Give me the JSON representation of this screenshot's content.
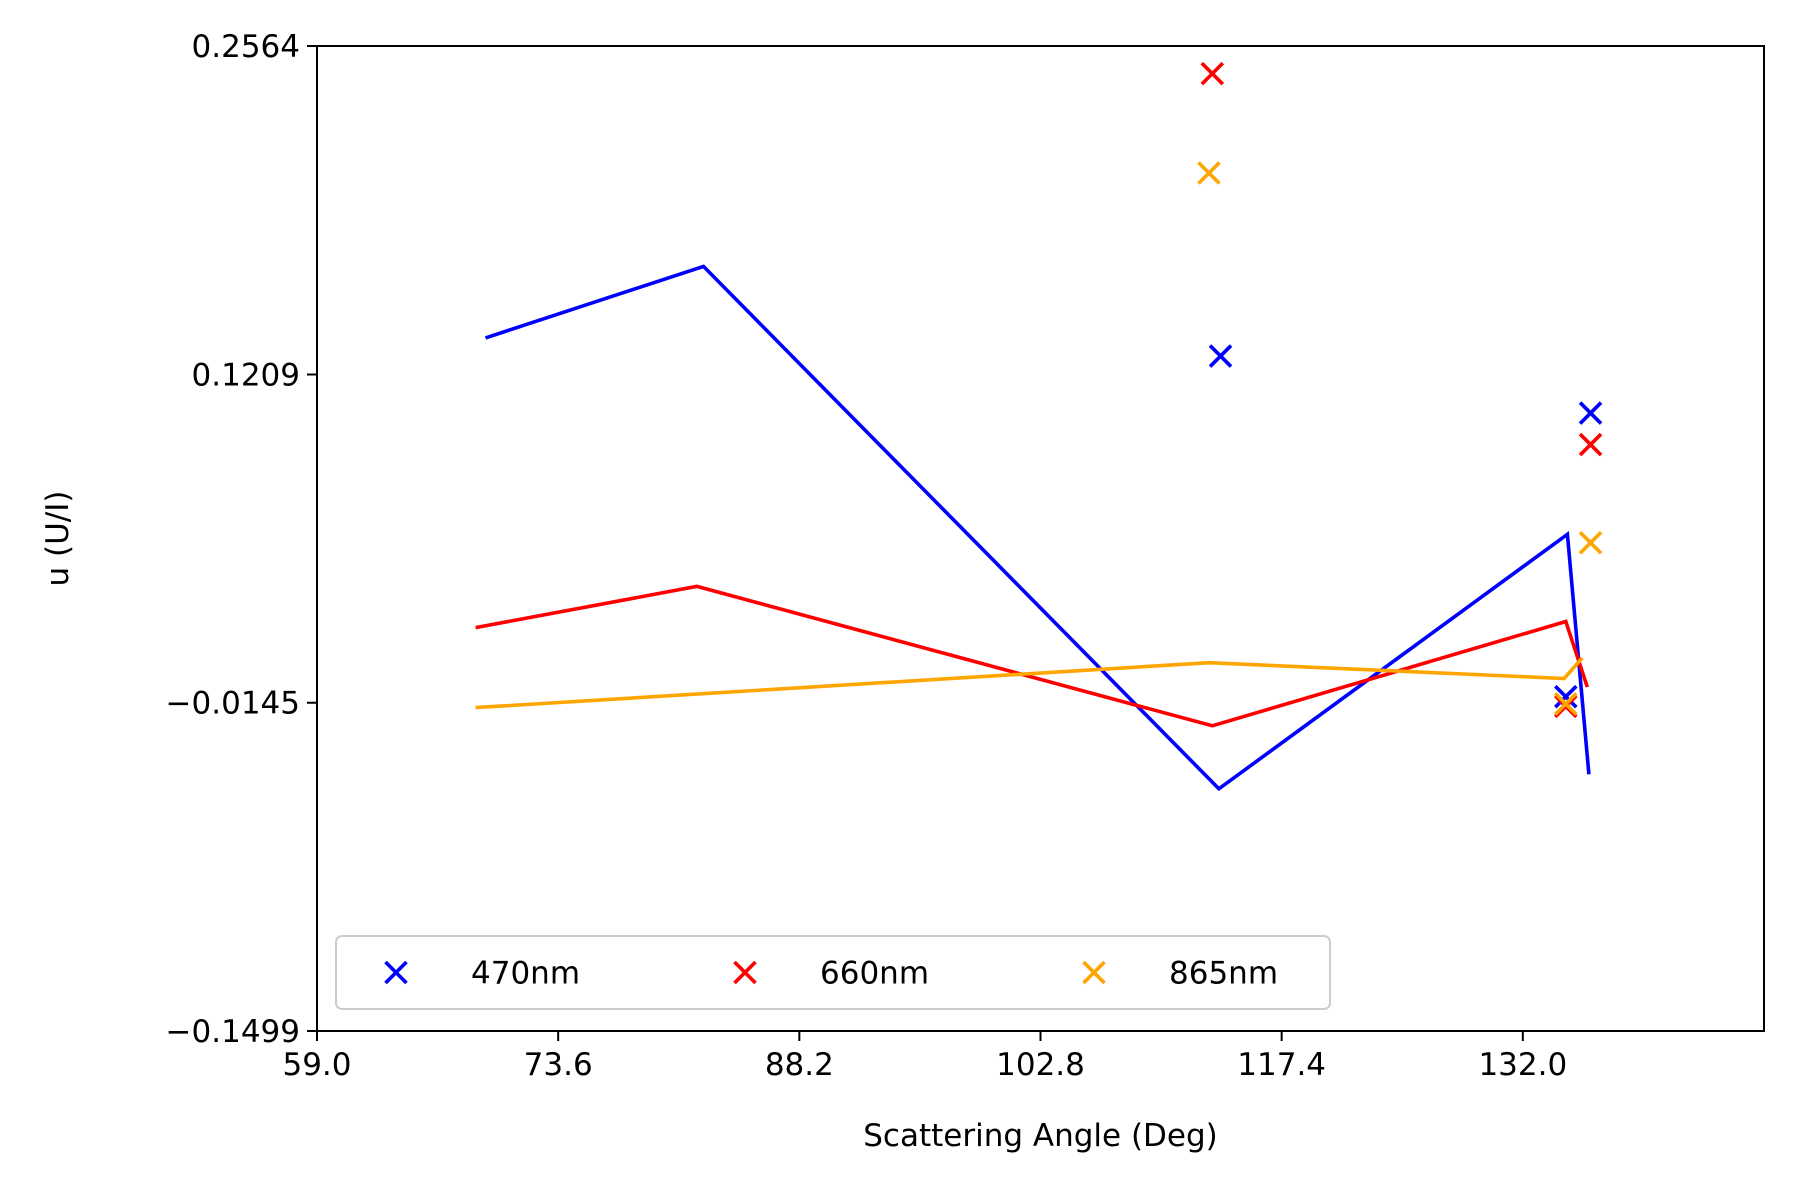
{
  "chart_data": {
    "type": "scatter",
    "title": "",
    "xlabel": "Scattering Angle (Deg)",
    "ylabel": "u (U/I)",
    "xlim": [
      59.0,
      146.6
    ],
    "ylim": [
      -0.1499,
      0.2564
    ],
    "xticks": [
      59.0,
      73.6,
      88.2,
      102.8,
      117.4,
      132.0
    ],
    "xtick_labels": [
      "59.0",
      "73.6",
      "88.2",
      "102.8",
      "117.4",
      "132.0"
    ],
    "yticks": [
      -0.1499,
      -0.0145,
      0.1209,
      0.2564
    ],
    "ytick_labels": [
      "−0.1499",
      "−0.0145",
      "0.1209",
      "0.2564"
    ],
    "grid": false,
    "legend_position": "lower-left",
    "series": [
      {
        "name": "470nm",
        "color": "#0000ff",
        "points": [
          [
            113.7,
            0.1285
          ],
          [
            136.1,
            0.105
          ],
          [
            134.6,
            -0.012
          ]
        ],
        "line": [
          [
            69.2,
            0.136
          ],
          [
            82.4,
            0.1655
          ],
          [
            113.6,
            -0.05
          ],
          [
            134.7,
            0.055
          ],
          [
            136.0,
            -0.044
          ]
        ]
      },
      {
        "name": "660nm",
        "color": "#ff0000",
        "points": [
          [
            113.2,
            0.245
          ],
          [
            136.1,
            0.092
          ],
          [
            134.6,
            -0.016
          ]
        ],
        "line": [
          [
            68.6,
            0.0165
          ],
          [
            82.0,
            0.0335
          ],
          [
            113.2,
            -0.024
          ],
          [
            134.6,
            0.019
          ],
          [
            135.9,
            -0.008
          ]
        ]
      },
      {
        "name": "865nm",
        "color": "#ffa500",
        "points": [
          [
            113.0,
            0.204
          ],
          [
            136.1,
            0.0515
          ],
          [
            134.6,
            -0.015
          ]
        ],
        "line": [
          [
            68.6,
            -0.0165
          ],
          [
            113.0,
            0.002
          ],
          [
            134.5,
            -0.0045
          ],
          [
            135.6,
            0.004
          ]
        ]
      }
    ]
  }
}
